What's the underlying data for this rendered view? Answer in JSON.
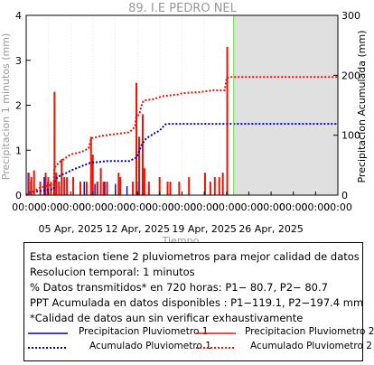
{
  "chart_data": {
    "type": "bar",
    "title": "89. I.E PEDRO NEL",
    "xlabel": "Tiempo",
    "ylabel_left": "Precipitacion 1 minutos (mm)",
    "ylabel_right": "Precipitacion Acumulada (mm)",
    "ylim_left": [
      0,
      4
    ],
    "yticks_left": [
      0,
      1,
      2,
      3,
      4
    ],
    "ylim_right": [
      0,
      300
    ],
    "yticks_right": [
      0,
      100,
      200,
      300
    ],
    "xlim_days": [
      -5,
      30
    ],
    "x_tick_time_label": "00:00",
    "x_tick_days": [
      -5,
      -2.5,
      0,
      2.5,
      5,
      7.5,
      10,
      12.5,
      15,
      17.5,
      20,
      22.5,
      25,
      27.5,
      30
    ],
    "x_date_labels": [
      {
        "day": 0,
        "label": "05 Apr, 2025"
      },
      {
        "day": 7.5,
        "label": "12 Apr, 2025"
      },
      {
        "day": 15,
        "label": "19 Apr, 2025"
      },
      {
        "day": 22.5,
        "label": "26 Apr, 2025"
      }
    ],
    "now_day": 18.3,
    "colors": {
      "p1": "#0000cc",
      "p2": "#ee1100",
      "now": "#66dd44",
      "shade": "#e0e0e0"
    },
    "series": [
      {
        "name": "Precipitacion Pluviometro 1",
        "style": "bars",
        "days": [
          -4.7,
          -4.4,
          -2.9,
          -2.5,
          -1.8,
          -1.2,
          -0.6,
          1.6,
          2.8,
          3.1,
          3.9,
          5.1,
          6.4,
          7.7,
          8.2
        ],
        "values": [
          0.5,
          0.3,
          0.4,
          0.3,
          0.35,
          0.2,
          0.35,
          0.3,
          0.25,
          0.3,
          0.3,
          0.25,
          0.2,
          0.3,
          0.3
        ]
      },
      {
        "name": "Precipitacion Pluviometro 2",
        "style": "bars",
        "days": [
          -4.8,
          -4.5,
          -4.2,
          -3.5,
          -2.9,
          -2.6,
          -2.3,
          -1.9,
          -1.7,
          -1.4,
          -1.1,
          -0.8,
          -0.5,
          0.2,
          1.0,
          1.7,
          2.2,
          2.4,
          2.9,
          3.3,
          3.6,
          4.0,
          5.3,
          5.5,
          6.9,
          7.3,
          7.6,
          8.0,
          8.2,
          8.7,
          9.9,
          10.8,
          11.1,
          12.1,
          13.2,
          15.0,
          15.6,
          16.1,
          16.6,
          17.0,
          17.5
        ],
        "values": [
          0.5,
          0.4,
          0.55,
          0.3,
          0.5,
          0.4,
          0.3,
          2.3,
          0.5,
          0.3,
          0.8,
          0.4,
          0.4,
          0.4,
          0.3,
          0.3,
          1.3,
          0.9,
          0.3,
          0.6,
          0.3,
          0.3,
          0.5,
          0.4,
          0.3,
          2.5,
          1.3,
          1.8,
          0.6,
          0.3,
          0.4,
          0.3,
          0.3,
          0.3,
          0.4,
          0.5,
          0.3,
          0.4,
          0.4,
          0.5,
          3.3
        ]
      },
      {
        "name": "Acumulado Pluviometro 1",
        "style": "dotted",
        "points": [
          [
            -5,
            0
          ],
          [
            -4.5,
            5
          ],
          [
            -3,
            8
          ],
          [
            -1.9,
            10
          ],
          [
            -1.85,
            22
          ],
          [
            -1.5,
            30
          ],
          [
            -1.0,
            34
          ],
          [
            -0.5,
            37
          ],
          [
            0,
            41
          ],
          [
            1.5,
            50
          ],
          [
            2.2,
            54
          ],
          [
            3.5,
            56
          ],
          [
            4.0,
            57
          ],
          [
            6.6,
            57
          ],
          [
            7.4,
            63
          ],
          [
            8.0,
            85
          ],
          [
            8.5,
            95
          ],
          [
            9.5,
            104
          ],
          [
            10,
            108
          ],
          [
            10.6,
            118
          ],
          [
            11.1,
            119
          ],
          [
            30,
            119
          ]
        ]
      },
      {
        "name": "Acumulado Pluviometro 2",
        "style": "dotted",
        "points": [
          [
            -5,
            0
          ],
          [
            -3.5,
            12
          ],
          [
            -2.8,
            15
          ],
          [
            -1.9,
            18
          ],
          [
            -1.85,
            45
          ],
          [
            -1.3,
            55
          ],
          [
            -0.8,
            60
          ],
          [
            0,
            68
          ],
          [
            1.2,
            72
          ],
          [
            2.0,
            78
          ],
          [
            2.3,
            95
          ],
          [
            3.5,
            99
          ],
          [
            4.0,
            100
          ],
          [
            6.6,
            105
          ],
          [
            7.2,
            114
          ],
          [
            7.35,
            130
          ],
          [
            7.7,
            135
          ],
          [
            8.0,
            152
          ],
          [
            8.2,
            158
          ],
          [
            9.2,
            160
          ],
          [
            10.3,
            165
          ],
          [
            12.0,
            168
          ],
          [
            12.5,
            170
          ],
          [
            14.5,
            172
          ],
          [
            16.0,
            175
          ],
          [
            17.3,
            175
          ],
          [
            17.5,
            196
          ],
          [
            18.0,
            197
          ],
          [
            30,
            197
          ]
        ]
      }
    ]
  },
  "info": {
    "line1": "Esta estacion tiene 2 pluviometros para mejor calidad de datos",
    "line2": "Resolucion temporal: 1 minutos",
    "line3": "% Datos transmitidos* en 720 horas: P1− 80.7, P2− 80.7",
    "line4": "PPT Acumulada en datos disponibles : P1−119.1, P2−197.4 mm",
    "line5": "*Calidad de datos aun sin verificar exhaustivamente"
  },
  "legend": {
    "p1_rain": "Precipitacion Pluviometro 1",
    "p2_rain": "Precipitacion Pluviometro 2",
    "p1_acc": "Acumulado Pluviometro 1",
    "p2_acc": "Acumulado Pluviometro 2"
  }
}
